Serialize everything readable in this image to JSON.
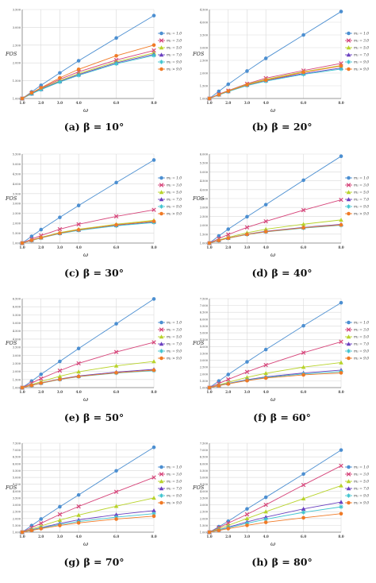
{
  "chart_data": [
    {
      "type": "line",
      "caption": "(a) β = 10°",
      "ylabel": "FOS",
      "xlabel": "ω",
      "x": [
        1,
        1.5,
        2,
        3,
        4,
        6,
        8
      ],
      "ylim": [
        1,
        3.5
      ],
      "yticks": [
        "1.000",
        "1.500",
        "2.000",
        "2.500",
        "3.000",
        "3.500"
      ],
      "xticks": [
        "1.0",
        "2.0",
        "3.0",
        "4.0",
        "6.0",
        "8.0"
      ],
      "xtick_values": [
        1,
        2,
        3,
        4,
        6,
        8
      ],
      "legend": [
        "m₁ = 1.0",
        "m₁ = 3.0",
        "m₁ = 5.0",
        "m₁ = 7.0",
        "m₁ = 9.0",
        "m₁ > 9.0"
      ],
      "series": [
        {
          "values": [
            1.0,
            1.185,
            1.37,
            1.72,
            2.06,
            2.7,
            3.33
          ]
        },
        {
          "values": [
            1.0,
            1.15,
            1.285,
            1.54,
            1.75,
            2.08,
            2.35
          ]
        },
        {
          "values": [
            1.0,
            1.14,
            1.27,
            1.5,
            1.7,
            2.03,
            2.28
          ]
        },
        {
          "values": [
            1.0,
            1.135,
            1.26,
            1.48,
            1.67,
            2.0,
            2.24
          ]
        },
        {
          "values": [
            1.0,
            1.13,
            1.25,
            1.465,
            1.65,
            1.975,
            2.21
          ]
        },
        {
          "values": [
            1.0,
            1.16,
            1.3,
            1.58,
            1.82,
            2.2,
            2.5
          ]
        }
      ]
    },
    {
      "type": "line",
      "caption": "(b) β = 20°",
      "ylabel": "FOS",
      "xlabel": "ω",
      "x": [
        1,
        1.5,
        2,
        3,
        4,
        6,
        8
      ],
      "ylim": [
        1,
        4.5
      ],
      "yticks": [
        "1.000",
        "1.500",
        "2.000",
        "2.500",
        "3.000",
        "3.500",
        "4.000",
        "4.500"
      ],
      "xticks": [
        "1.0",
        "2.0",
        "3.0",
        "4.0",
        "6.0",
        "8.0"
      ],
      "xtick_values": [
        1,
        2,
        3,
        4,
        6,
        8
      ],
      "legend": [
        "m₁ = 1.0",
        "m₁ = 3.0",
        "m₁ = 5.0",
        "m₁ = 7.0",
        "m₁ = 9.0",
        "m₁ > 9.0"
      ],
      "series": [
        {
          "values": [
            1.0,
            1.28,
            1.56,
            2.08,
            2.58,
            3.5,
            4.42
          ]
        },
        {
          "values": [
            1.0,
            1.17,
            1.31,
            1.58,
            1.8,
            2.1,
            2.38
          ]
        },
        {
          "values": [
            1.0,
            1.16,
            1.3,
            1.56,
            1.75,
            2.05,
            2.3
          ]
        },
        {
          "values": [
            1.0,
            1.15,
            1.28,
            1.53,
            1.71,
            1.98,
            2.2
          ]
        },
        {
          "values": [
            1.0,
            1.14,
            1.27,
            1.51,
            1.68,
            1.95,
            2.16
          ]
        },
        {
          "values": [
            1.0,
            1.15,
            1.29,
            1.54,
            1.72,
            2.03,
            2.28
          ]
        }
      ]
    },
    {
      "type": "line",
      "caption": "(c) β = 30°",
      "ylabel": "FOS",
      "xlabel": "ω",
      "x": [
        1,
        1.5,
        2,
        3,
        4,
        6,
        8
      ],
      "ylim": [
        1,
        5.5
      ],
      "yticks": [
        "1.000",
        "1.500",
        "2.000",
        "2.500",
        "3.000",
        "3.500",
        "4.000",
        "4.500",
        "5.000",
        "5.500"
      ],
      "xticks": [
        "1.0",
        "2.0",
        "3.0",
        "4.0",
        "6.0",
        "8.0"
      ],
      "xtick_values": [
        1,
        2,
        3,
        4,
        6,
        8
      ],
      "legend": [
        "m₁ = 1.0",
        "m₁ = 3.0",
        "m₁ = 5.0",
        "m₁ = 7.0",
        "m₁ = 9.0",
        "m₁ > 9.0"
      ],
      "series": [
        {
          "values": [
            1.0,
            1.34,
            1.68,
            2.3,
            2.9,
            4.06,
            5.2
          ]
        },
        {
          "values": [
            1.0,
            1.2,
            1.38,
            1.7,
            1.95,
            2.35,
            2.68
          ]
        },
        {
          "values": [
            1.0,
            1.15,
            1.29,
            1.53,
            1.7,
            1.95,
            2.15
          ]
        },
        {
          "values": [
            1.0,
            1.14,
            1.27,
            1.5,
            1.66,
            1.9,
            2.08
          ]
        },
        {
          "values": [
            1.0,
            1.13,
            1.26,
            1.48,
            1.64,
            1.87,
            2.04
          ]
        },
        {
          "values": [
            1.0,
            1.14,
            1.27,
            1.5,
            1.67,
            1.92,
            2.1
          ]
        }
      ]
    },
    {
      "type": "line",
      "caption": "(d) β = 40°",
      "ylabel": "FOS",
      "xlabel": "ω",
      "x": [
        1,
        1.5,
        2,
        3,
        4,
        6,
        8
      ],
      "ylim": [
        1,
        6
      ],
      "yticks": [
        "1.000",
        "1.500",
        "2.000",
        "2.500",
        "3.000",
        "3.500",
        "4.000",
        "4.500",
        "5.000",
        "5.500",
        "6.000"
      ],
      "xticks": [
        "1.0",
        "2.0",
        "3.0",
        "4.0",
        "6.0",
        "8.0"
      ],
      "xtick_values": [
        1,
        2,
        3,
        4,
        6,
        8
      ],
      "legend": [
        "m₁ = 1.0",
        "m₁ = 3.0",
        "m₁ = 5.0",
        "m₁ = 7.0",
        "m₁ = 9.0",
        "m₁ > 9.0"
      ],
      "series": [
        {
          "values": [
            1.0,
            1.4,
            1.78,
            2.48,
            3.16,
            4.53,
            5.88
          ]
        },
        {
          "values": [
            1.0,
            1.25,
            1.48,
            1.88,
            2.22,
            2.85,
            3.43
          ]
        },
        {
          "values": [
            1.0,
            1.17,
            1.32,
            1.58,
            1.78,
            2.06,
            2.3
          ]
        },
        {
          "values": [
            1.0,
            1.15,
            1.28,
            1.5,
            1.66,
            1.88,
            2.05
          ]
        },
        {
          "values": [
            1.0,
            1.14,
            1.27,
            1.48,
            1.63,
            1.84,
            2.0
          ]
        },
        {
          "values": [
            1.0,
            1.145,
            1.275,
            1.49,
            1.64,
            1.86,
            2.02
          ]
        }
      ]
    },
    {
      "type": "line",
      "caption": "(e) β = 50°",
      "ylabel": "FOS",
      "xlabel": "ω",
      "x": [
        1,
        1.5,
        2,
        3,
        4,
        6,
        8
      ],
      "ylim": [
        1,
        6.5
      ],
      "yticks": [
        "1.000",
        "1.500",
        "2.000",
        "2.500",
        "3.000",
        "3.500",
        "4.000",
        "4.500",
        "5.000",
        "5.500",
        "6.000",
        "6.500"
      ],
      "xticks": [
        "1.0",
        "2.0",
        "3.0",
        "4.0",
        "6.0",
        "8.0"
      ],
      "xtick_values": [
        1,
        2,
        3,
        4,
        6,
        8
      ],
      "legend": [
        "m₁ = 1.0",
        "m₁ = 3.0",
        "m₁ = 5.0",
        "m₁ = 7.0",
        "m₁ = 9.0",
        "m₁ > 9.0"
      ],
      "series": [
        {
          "values": [
            1.0,
            1.4,
            1.82,
            2.62,
            3.42,
            4.95,
            6.48
          ]
        },
        {
          "values": [
            1.0,
            1.28,
            1.56,
            2.05,
            2.5,
            3.2,
            3.8
          ]
        },
        {
          "values": [
            1.0,
            1.19,
            1.37,
            1.7,
            1.98,
            2.35,
            2.62
          ]
        },
        {
          "values": [
            1.0,
            1.15,
            1.29,
            1.53,
            1.72,
            1.96,
            2.13
          ]
        },
        {
          "values": [
            1.0,
            1.14,
            1.27,
            1.5,
            1.68,
            1.9,
            2.05
          ]
        },
        {
          "values": [
            1.0,
            1.14,
            1.28,
            1.51,
            1.69,
            1.92,
            2.08
          ]
        }
      ]
    },
    {
      "type": "line",
      "caption": "(f) β = 60°",
      "ylabel": "FOS",
      "xlabel": "ω",
      "x": [
        1,
        1.5,
        2,
        3,
        4,
        6,
        8
      ],
      "ylim": [
        1,
        7.5
      ],
      "yticks": [
        "1.000",
        "1.500",
        "2.000",
        "2.500",
        "3.000",
        "3.500",
        "4.000",
        "4.500",
        "5.000",
        "5.500",
        "6.000",
        "6.500",
        "7.000",
        "7.500"
      ],
      "xticks": [
        "1.0",
        "2.0",
        "3.0",
        "4.0",
        "6.0",
        "8.0"
      ],
      "xtick_values": [
        1,
        2,
        3,
        4,
        6,
        8
      ],
      "legend": [
        "m₁ = 1.0",
        "m₁ = 3.0",
        "m₁ = 5.0",
        "m₁ = 7.0",
        "m₁ = 9.0",
        "m₁ > 9.0"
      ],
      "series": [
        {
          "values": [
            1.0,
            1.48,
            1.96,
            2.88,
            3.78,
            5.52,
            7.2
          ]
        },
        {
          "values": [
            1.0,
            1.3,
            1.6,
            2.15,
            2.65,
            3.55,
            4.35
          ]
        },
        {
          "values": [
            1.0,
            1.2,
            1.39,
            1.75,
            2.05,
            2.5,
            2.83
          ]
        },
        {
          "values": [
            1.0,
            1.16,
            1.31,
            1.58,
            1.79,
            2.07,
            2.28
          ]
        },
        {
          "values": [
            1.0,
            1.15,
            1.29,
            1.54,
            1.74,
            2.0,
            2.18
          ]
        },
        {
          "values": [
            1.0,
            1.14,
            1.27,
            1.51,
            1.7,
            1.93,
            2.08
          ]
        }
      ]
    },
    {
      "type": "line",
      "caption": "(g) β = 70°",
      "ylabel": "FOS",
      "xlabel": "ω",
      "x": [
        1,
        1.5,
        2,
        3,
        4,
        6,
        8
      ],
      "ylim": [
        1,
        7.5
      ],
      "yticks": [
        "1.000",
        "1.500",
        "2.000",
        "2.500",
        "3.000",
        "3.500",
        "4.000",
        "4.500",
        "5.000",
        "5.500",
        "6.000",
        "6.500",
        "7.000",
        "7.500"
      ],
      "xticks": [
        "1.0",
        "2.0",
        "3.0",
        "4.0",
        "6.0",
        "8.0"
      ],
      "xtick_values": [
        1,
        2,
        3,
        4,
        6,
        8
      ],
      "legend": [
        "m₁ = 1.0",
        "m₁ = 3.0",
        "m₁ = 5.0",
        "m₁ = 7.0",
        "m₁ = 9.0",
        "m₁ > 9.0"
      ],
      "series": [
        {
          "values": [
            1.0,
            1.48,
            1.96,
            2.86,
            3.72,
            5.48,
            7.2
          ]
        },
        {
          "values": [
            1.0,
            1.33,
            1.65,
            2.3,
            2.88,
            3.95,
            5.0
          ]
        },
        {
          "values": [
            1.0,
            1.22,
            1.45,
            1.88,
            2.25,
            2.9,
            3.5
          ]
        },
        {
          "values": [
            1.0,
            1.17,
            1.33,
            1.64,
            1.9,
            2.28,
            2.58
          ]
        },
        {
          "values": [
            1.0,
            1.15,
            1.3,
            1.56,
            1.78,
            2.1,
            2.35
          ]
        },
        {
          "values": [
            1.0,
            1.13,
            1.26,
            1.49,
            1.68,
            1.96,
            2.17
          ]
        }
      ]
    },
    {
      "type": "line",
      "caption": "(h) β = 80°",
      "ylabel": "FOS",
      "xlabel": "ω",
      "x": [
        1,
        1.5,
        2,
        3,
        4,
        6,
        8
      ],
      "ylim": [
        1,
        7.5
      ],
      "yticks": [
        "1.000",
        "1.500",
        "2.000",
        "2.500",
        "3.000",
        "3.500",
        "4.000",
        "4.500",
        "5.000",
        "5.500",
        "6.000",
        "6.500",
        "7.000",
        "7.500"
      ],
      "xticks": [
        "1.0",
        "2.0",
        "3.0",
        "4.0",
        "6.0",
        "8.0"
      ],
      "xtick_values": [
        1,
        2,
        3,
        4,
        6,
        8
      ],
      "legend": [
        "m₁ = 1.0",
        "m₁ = 3.0",
        "m₁ = 5.0",
        "m₁ = 7.0",
        "m₁ = 9.0",
        "m₁ > 9.0"
      ],
      "series": [
        {
          "values": [
            1.0,
            1.4,
            1.8,
            2.7,
            3.55,
            5.25,
            7.0
          ]
        },
        {
          "values": [
            1.0,
            1.33,
            1.66,
            2.3,
            3.0,
            4.45,
            5.85
          ]
        },
        {
          "values": [
            1.0,
            1.25,
            1.5,
            2.0,
            2.5,
            3.45,
            4.4
          ]
        },
        {
          "values": [
            1.0,
            1.18,
            1.36,
            1.75,
            2.1,
            2.7,
            3.2
          ]
        },
        {
          "values": [
            1.0,
            1.16,
            1.32,
            1.65,
            1.95,
            2.45,
            2.85
          ]
        },
        {
          "values": [
            1.0,
            1.13,
            1.26,
            1.5,
            1.72,
            2.05,
            2.35
          ]
        }
      ]
    }
  ],
  "colors": {
    "series": [
      "#4c8fd1",
      "#d6457a",
      "#b8d32a",
      "#6a40c0",
      "#3fc4cf",
      "#f07a26"
    ],
    "grid": "#d9d9d9",
    "axis": "#7f7f7f",
    "tick_text": "#444444"
  },
  "markers": [
    "circle",
    "cross",
    "triangle",
    "triangle",
    "star",
    "circle"
  ]
}
